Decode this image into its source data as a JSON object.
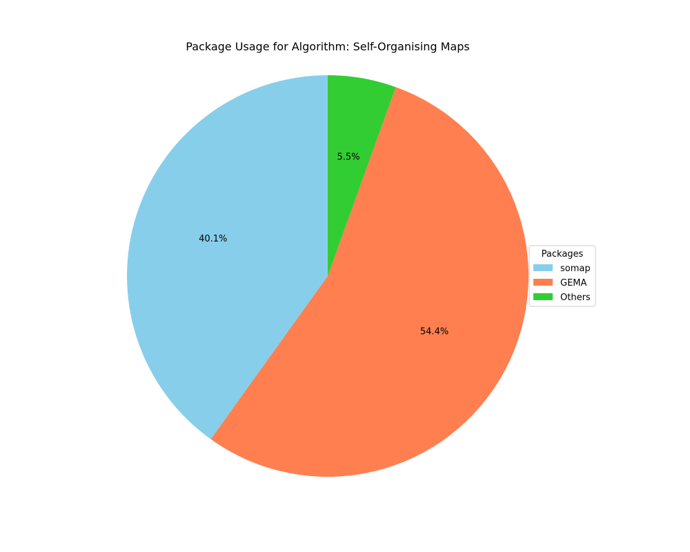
{
  "chart_data": {
    "type": "pie",
    "title": "Package Usage for Algorithm: Self-Organising Maps",
    "categories": [
      "somap",
      "GEMA",
      "Others"
    ],
    "values": [
      40.1,
      54.4,
      5.5
    ],
    "labels": [
      "40.1%",
      "54.4%",
      "5.5%"
    ],
    "colors": [
      "#87ceeb",
      "#ff7f50",
      "#32cd32"
    ],
    "start_angle_deg": 90,
    "direction": "counterclockwise",
    "legend": {
      "title": "Packages",
      "placement": "center-right"
    }
  }
}
